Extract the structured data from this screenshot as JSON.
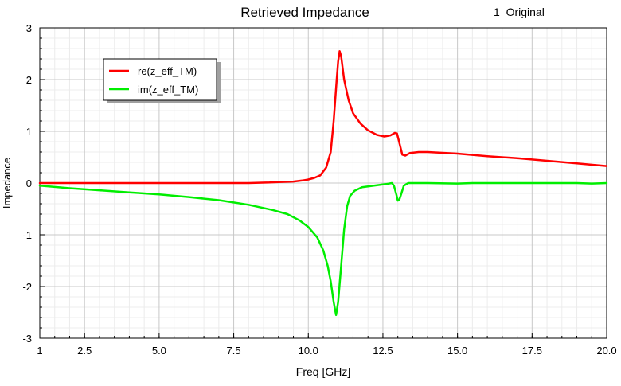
{
  "header": {
    "title": "Retrieved Impedance",
    "tag": "1_Original"
  },
  "chart_data": {
    "type": "line",
    "title": "Retrieved Impedance",
    "xlabel": "Freq [GHz]",
    "ylabel": "Impedance",
    "xlim": [
      1,
      20
    ],
    "ylim": [
      -3,
      3
    ],
    "x_ticks": [
      {
        "value": 1,
        "label": "1"
      },
      {
        "value": 2.5,
        "label": "2.5"
      },
      {
        "value": 5,
        "label": "5.0"
      },
      {
        "value": 7.5,
        "label": "7.5"
      },
      {
        "value": 10,
        "label": "10.0"
      },
      {
        "value": 12.5,
        "label": "12.5"
      },
      {
        "value": 15,
        "label": "15.0"
      },
      {
        "value": 17.5,
        "label": "17.5"
      },
      {
        "value": 20,
        "label": "20.0"
      }
    ],
    "y_ticks": [
      {
        "value": 3,
        "label": "3"
      },
      {
        "value": 2,
        "label": "2"
      },
      {
        "value": 1,
        "label": "1"
      },
      {
        "value": 0,
        "label": "0"
      },
      {
        "value": -1,
        "label": "-1"
      },
      {
        "value": -2,
        "label": "-2"
      },
      {
        "value": -3,
        "label": "-3"
      }
    ],
    "grid": true,
    "legend_position": "top-left",
    "series": [
      {
        "name": "re(z_eff_TM)",
        "color": "#ff0000",
        "points": [
          [
            1,
            0.0
          ],
          [
            2,
            0.0
          ],
          [
            3,
            0.0
          ],
          [
            4,
            0.0
          ],
          [
            5,
            0.0
          ],
          [
            6,
            0.0
          ],
          [
            7,
            0.0
          ],
          [
            8,
            0.0
          ],
          [
            8.7,
            0.01
          ],
          [
            9,
            0.02
          ],
          [
            9.5,
            0.03
          ],
          [
            9.8,
            0.05
          ],
          [
            10,
            0.07
          ],
          [
            10.2,
            0.1
          ],
          [
            10.4,
            0.15
          ],
          [
            10.6,
            0.3
          ],
          [
            10.75,
            0.6
          ],
          [
            10.85,
            1.2
          ],
          [
            10.95,
            2.0
          ],
          [
            11.0,
            2.35
          ],
          [
            11.05,
            2.55
          ],
          [
            11.1,
            2.45
          ],
          [
            11.2,
            2.0
          ],
          [
            11.35,
            1.6
          ],
          [
            11.5,
            1.35
          ],
          [
            11.75,
            1.15
          ],
          [
            12.0,
            1.02
          ],
          [
            12.3,
            0.93
          ],
          [
            12.55,
            0.9
          ],
          [
            12.75,
            0.92
          ],
          [
            12.9,
            0.97
          ],
          [
            12.97,
            0.96
          ],
          [
            13.05,
            0.78
          ],
          [
            13.15,
            0.55
          ],
          [
            13.25,
            0.53
          ],
          [
            13.4,
            0.58
          ],
          [
            13.7,
            0.6
          ],
          [
            14.0,
            0.6
          ],
          [
            15.0,
            0.57
          ],
          [
            16.0,
            0.52
          ],
          [
            17.0,
            0.48
          ],
          [
            18.0,
            0.43
          ],
          [
            19.0,
            0.38
          ],
          [
            20.0,
            0.33
          ]
        ]
      },
      {
        "name": "im(z_eff_TM)",
        "color": "#00ee00",
        "points": [
          [
            1,
            -0.05
          ],
          [
            2,
            -0.1
          ],
          [
            3,
            -0.14
          ],
          [
            4,
            -0.18
          ],
          [
            5,
            -0.22
          ],
          [
            6,
            -0.27
          ],
          [
            7,
            -0.33
          ],
          [
            8,
            -0.42
          ],
          [
            8.8,
            -0.52
          ],
          [
            9.3,
            -0.6
          ],
          [
            9.7,
            -0.72
          ],
          [
            10.0,
            -0.85
          ],
          [
            10.3,
            -1.05
          ],
          [
            10.5,
            -1.3
          ],
          [
            10.65,
            -1.6
          ],
          [
            10.75,
            -1.9
          ],
          [
            10.85,
            -2.3
          ],
          [
            10.93,
            -2.55
          ],
          [
            11.0,
            -2.3
          ],
          [
            11.1,
            -1.6
          ],
          [
            11.2,
            -0.9
          ],
          [
            11.3,
            -0.45
          ],
          [
            11.4,
            -0.25
          ],
          [
            11.55,
            -0.15
          ],
          [
            11.8,
            -0.08
          ],
          [
            12.2,
            -0.05
          ],
          [
            12.6,
            -0.02
          ],
          [
            12.8,
            0.0
          ],
          [
            12.87,
            -0.05
          ],
          [
            12.95,
            -0.22
          ],
          [
            13.0,
            -0.34
          ],
          [
            13.05,
            -0.32
          ],
          [
            13.12,
            -0.2
          ],
          [
            13.2,
            -0.05
          ],
          [
            13.35,
            0.0
          ],
          [
            14.0,
            0.0
          ],
          [
            15.0,
            -0.01
          ],
          [
            15.5,
            0.0
          ],
          [
            16.0,
            0.0
          ],
          [
            17.0,
            0.0
          ],
          [
            18.0,
            0.0
          ],
          [
            19.0,
            0.0
          ],
          [
            19.5,
            -0.01
          ],
          [
            20.0,
            0.0
          ]
        ]
      }
    ]
  }
}
